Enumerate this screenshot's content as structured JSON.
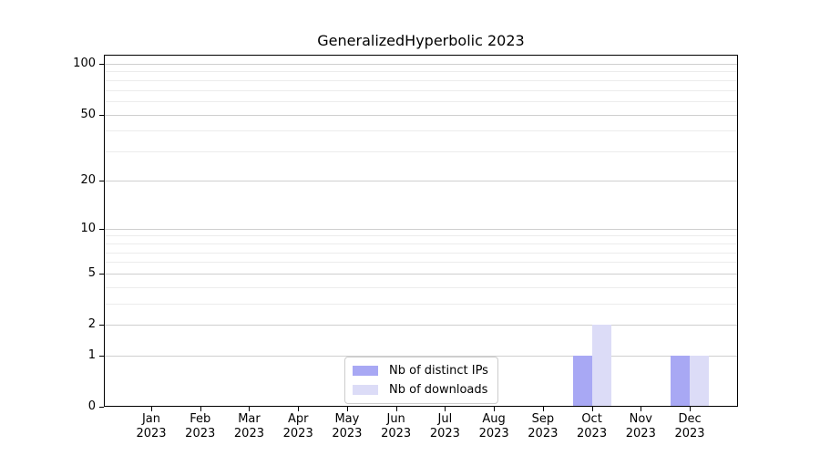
{
  "chart_data": {
    "type": "bar",
    "title": "GeneralizedHyperbolic 2023",
    "categories": [
      "Jan",
      "Feb",
      "Mar",
      "Apr",
      "May",
      "Jun",
      "Jul",
      "Aug",
      "Sep",
      "Oct",
      "Nov",
      "Dec"
    ],
    "category_year": "2023",
    "series": [
      {
        "name": "Nb of distinct IPs",
        "color": "#a8a8f4",
        "values": [
          0,
          0,
          0,
          0,
          0,
          0,
          0,
          0,
          0,
          1,
          0,
          1
        ]
      },
      {
        "name": "Nb of downloads",
        "color": "#dcdcf7",
        "values": [
          0,
          0,
          0,
          0,
          0,
          0,
          0,
          0,
          0,
          2,
          0,
          1
        ]
      }
    ],
    "yscale": "log1p",
    "ylim": [
      0,
      113
    ],
    "yticks": [
      0,
      1,
      2,
      5,
      10,
      20,
      50,
      100
    ],
    "yticks_minor": [
      3,
      4,
      6,
      7,
      8,
      9,
      30,
      40,
      60,
      70,
      80,
      90
    ],
    "grid": true,
    "legend": {
      "position": "bottom-center"
    },
    "colors": {
      "grid_major": "#cfcfcf",
      "grid_minor": "#ececec",
      "spine": "#000000",
      "text": "#000000",
      "background": "#ffffff"
    }
  }
}
